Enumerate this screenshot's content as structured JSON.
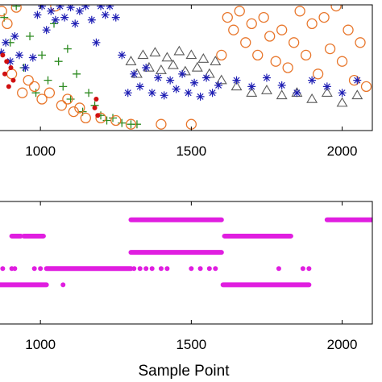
{
  "chart_data": [
    {
      "type": "scatter",
      "panel": "top",
      "xlim": [
        850,
        2100
      ],
      "x_ticks": [
        1000,
        1500,
        2000
      ],
      "x_tick_labels": [
        "1000",
        "1500",
        "2000"
      ],
      "grid": false,
      "legend": "none",
      "series": [
        {
          "marker": "asterisk",
          "color": "#1f1fb4",
          "points": [
            [
              870,
              0.62
            ],
            [
              885,
              0.7
            ],
            [
              900,
              0.55
            ],
            [
              915,
              0.75
            ],
            [
              930,
              0.6
            ],
            [
              950,
              0.5
            ],
            [
              975,
              0.58
            ],
            [
              990,
              0.92
            ],
            [
              1005,
              0.99
            ],
            [
              1020,
              0.8
            ],
            [
              1035,
              0.95
            ],
            [
              1050,
              0.88
            ],
            [
              1065,
              0.99
            ],
            [
              1080,
              0.9
            ],
            [
              1100,
              0.98
            ],
            [
              1115,
              0.85
            ],
            [
              1130,
              0.95
            ],
            [
              1150,
              0.99
            ],
            [
              1170,
              0.88
            ],
            [
              1185,
              0.7
            ],
            [
              1200,
              0.99
            ],
            [
              1215,
              0.92
            ],
            [
              1230,
              0.99
            ],
            [
              1250,
              0.9
            ],
            [
              1270,
              0.6
            ],
            [
              1290,
              0.3
            ],
            [
              1310,
              0.45
            ],
            [
              1330,
              0.35
            ],
            [
              1350,
              0.5
            ],
            [
              1370,
              0.3
            ],
            [
              1390,
              0.42
            ],
            [
              1410,
              0.28
            ],
            [
              1430,
              0.4
            ],
            [
              1450,
              0.33
            ],
            [
              1470,
              0.45
            ],
            [
              1490,
              0.3
            ],
            [
              1510,
              0.38
            ],
            [
              1530,
              0.27
            ],
            [
              1550,
              0.42
            ],
            [
              1570,
              0.3
            ],
            [
              1590,
              0.36
            ],
            [
              1650,
              0.4
            ],
            [
              1700,
              0.35
            ],
            [
              1750,
              0.42
            ],
            [
              1800,
              0.36
            ],
            [
              1850,
              0.3
            ],
            [
              1900,
              0.4
            ],
            [
              1950,
              0.35
            ],
            [
              2000,
              0.3
            ],
            [
              2050,
              0.4
            ]
          ]
        },
        {
          "marker": "circle",
          "color": "#e8762b",
          "points": [
            [
              872,
              0.95
            ],
            [
              890,
              0.85
            ],
            [
              905,
              0.45
            ],
            [
              920,
              0.98
            ],
            [
              940,
              0.3
            ],
            [
              960,
              0.4
            ],
            [
              980,
              0.35
            ],
            [
              1005,
              0.25
            ],
            [
              1030,
              0.3
            ],
            [
              1050,
              0.99
            ],
            [
              1070,
              0.2
            ],
            [
              1090,
              0.25
            ],
            [
              1110,
              0.15
            ],
            [
              1130,
              0.18
            ],
            [
              1150,
              0.1
            ],
            [
              1200,
              0.1
            ],
            [
              1250,
              0.08
            ],
            [
              1300,
              0.05
            ],
            [
              1400,
              0.05
            ],
            [
              1500,
              0.05
            ],
            [
              1600,
              0.6
            ],
            [
              1620,
              0.9
            ],
            [
              1640,
              0.8
            ],
            [
              1660,
              0.95
            ],
            [
              1680,
              0.7
            ],
            [
              1700,
              0.85
            ],
            [
              1720,
              0.6
            ],
            [
              1740,
              0.9
            ],
            [
              1760,
              0.75
            ],
            [
              1780,
              0.55
            ],
            [
              1800,
              0.8
            ],
            [
              1820,
              0.5
            ],
            [
              1840,
              0.7
            ],
            [
              1860,
              0.95
            ],
            [
              1880,
              0.6
            ],
            [
              1900,
              0.85
            ],
            [
              1920,
              0.45
            ],
            [
              1940,
              0.9
            ],
            [
              1960,
              0.65
            ],
            [
              1980,
              0.99
            ],
            [
              2000,
              0.55
            ],
            [
              2020,
              0.8
            ],
            [
              2040,
              0.4
            ],
            [
              2060,
              0.7
            ],
            [
              2080,
              0.35
            ]
          ]
        },
        {
          "marker": "plus",
          "color": "#2e8b22",
          "points": [
            [
              880,
              0.9
            ],
            [
              900,
              0.7
            ],
            [
              920,
              0.99
            ],
            [
              945,
              0.5
            ],
            [
              965,
              0.75
            ],
            [
              985,
              0.3
            ],
            [
              1005,
              0.6
            ],
            [
              1025,
              0.4
            ],
            [
              1045,
              0.85
            ],
            [
              1060,
              0.55
            ],
            [
              1075,
              0.35
            ],
            [
              1090,
              0.65
            ],
            [
              1100,
              0.25
            ],
            [
              1120,
              0.45
            ],
            [
              1140,
              0.15
            ],
            [
              1160,
              0.3
            ],
            [
              1180,
              0.2
            ],
            [
              1200,
              0.12
            ],
            [
              1220,
              0.08
            ],
            [
              1240,
              0.1
            ],
            [
              1270,
              0.06
            ],
            [
              1300,
              0.05
            ],
            [
              1320,
              0.05
            ]
          ]
        },
        {
          "marker": "triangle",
          "color": "#5a5a5a",
          "points": [
            [
              1300,
              0.55
            ],
            [
              1320,
              0.45
            ],
            [
              1340,
              0.6
            ],
            [
              1360,
              0.5
            ],
            [
              1380,
              0.62
            ],
            [
              1400,
              0.48
            ],
            [
              1420,
              0.58
            ],
            [
              1440,
              0.52
            ],
            [
              1460,
              0.63
            ],
            [
              1480,
              0.47
            ],
            [
              1500,
              0.6
            ],
            [
              1520,
              0.5
            ],
            [
              1540,
              0.57
            ],
            [
              1560,
              0.45
            ],
            [
              1580,
              0.55
            ],
            [
              1600,
              0.4
            ],
            [
              1650,
              0.35
            ],
            [
              1700,
              0.3
            ],
            [
              1750,
              0.32
            ],
            [
              1800,
              0.28
            ],
            [
              1850,
              0.3
            ],
            [
              1900,
              0.25
            ],
            [
              1950,
              0.3
            ],
            [
              2000,
              0.22
            ],
            [
              2050,
              0.28
            ]
          ]
        },
        {
          "marker": "point",
          "color": "#d01010",
          "points": [
            [
              875,
              0.6
            ],
            [
              882,
              0.45
            ],
            [
              888,
              0.55
            ],
            [
              895,
              0.35
            ],
            [
              902,
              0.5
            ],
            [
              910,
              0.4
            ],
            [
              1180,
              0.18
            ],
            [
              1185,
              0.25
            ],
            [
              1190,
              0.12
            ]
          ]
        }
      ]
    },
    {
      "type": "scatter",
      "panel": "bottom",
      "xlabel": "Sample Point",
      "xlim": [
        850,
        2100
      ],
      "x_ticks": [
        1000,
        1500,
        2000
      ],
      "x_tick_labels": [
        "1000",
        "1500",
        "2000"
      ],
      "grid": false,
      "legend": "none",
      "color": "#e01ee0",
      "marker": "point",
      "levels": [
        5,
        4,
        3,
        2,
        1
      ],
      "segments": [
        {
          "level": 5,
          "ranges": [
            [
              1300,
              1600
            ],
            [
              1950,
              2100
            ]
          ]
        },
        {
          "level": 4,
          "ranges": [
            [
              905,
              935
            ],
            [
              945,
              1010
            ],
            [
              1610,
              1830
            ]
          ]
        },
        {
          "level": 3,
          "ranges": [
            [
              1300,
              1600
            ]
          ]
        },
        {
          "level": 2,
          "ranges": [
            [
              1020,
              1300
            ]
          ]
        },
        {
          "level": 1,
          "ranges": [
            [
              850,
              1020
            ],
            [
              1605,
              1890
            ]
          ]
        }
      ],
      "isolated": [
        {
          "level": 2,
          "x": [
            855,
            875,
            905,
            915,
            980,
            1000,
            1310,
            1330,
            1350,
            1370,
            1400,
            1420,
            1500,
            1530,
            1560,
            1580,
            1790,
            1870,
            1890
          ]
        },
        {
          "level": 1,
          "x": [
            1075
          ]
        }
      ]
    }
  ]
}
